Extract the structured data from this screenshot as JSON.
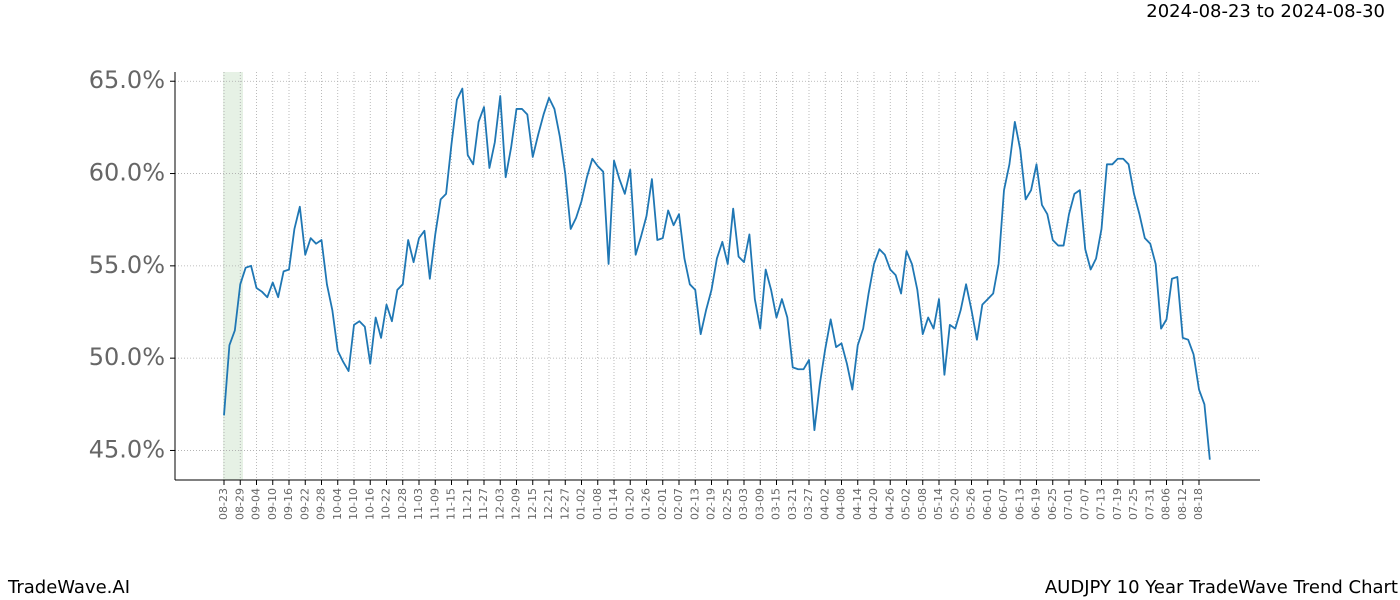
{
  "chart_data": {
    "type": "line",
    "title": "2024-08-23 to 2024-08-30",
    "footer_left": "TradeWave.AI",
    "footer_right": "AUDJPY 10 Year TradeWave Trend Chart",
    "grid": true,
    "ylim": [
      43.4,
      65.5
    ],
    "yticks": [
      {
        "value": 45,
        "label": "45.0%"
      },
      {
        "value": 50,
        "label": "50.0%"
      },
      {
        "value": 55,
        "label": "55.0%"
      },
      {
        "value": 60,
        "label": "60.0%"
      },
      {
        "value": 65,
        "label": "65.0%"
      }
    ],
    "categories": [
      "08-23",
      null,
      null,
      "08-29",
      null,
      null,
      "09-04",
      null,
      null,
      "09-10",
      null,
      null,
      "09-16",
      null,
      null,
      "09-22",
      null,
      null,
      "09-28",
      null,
      null,
      "10-04",
      null,
      null,
      "10-10",
      null,
      null,
      "10-16",
      null,
      null,
      "10-22",
      null,
      null,
      "10-28",
      null,
      null,
      "11-03",
      null,
      null,
      "11-09",
      null,
      null,
      "11-15",
      null,
      null,
      "11-21",
      null,
      null,
      "11-27",
      null,
      null,
      "12-03",
      null,
      null,
      "12-09",
      null,
      null,
      "12-15",
      null,
      null,
      "12-21",
      null,
      null,
      "12-27",
      null,
      null,
      "01-02",
      null,
      null,
      "01-08",
      null,
      null,
      "01-14",
      null,
      null,
      "01-20",
      null,
      null,
      "01-26",
      null,
      null,
      "02-01",
      null,
      null,
      "02-07",
      null,
      null,
      "02-13",
      null,
      null,
      "02-19",
      null,
      null,
      "02-25",
      null,
      null,
      "03-03",
      null,
      null,
      "03-09",
      null,
      null,
      "03-15",
      null,
      null,
      "03-21",
      null,
      null,
      "03-27",
      null,
      null,
      "04-02",
      null,
      null,
      "04-08",
      null,
      null,
      "04-14",
      null,
      null,
      "04-20",
      null,
      null,
      "04-26",
      null,
      null,
      "05-02",
      null,
      null,
      "05-08",
      null,
      null,
      "05-14",
      null,
      null,
      "05-20",
      null,
      null,
      "05-26",
      null,
      null,
      "06-01",
      null,
      null,
      "06-07",
      null,
      null,
      "06-13",
      null,
      null,
      "06-19",
      null,
      null,
      "06-25",
      null,
      null,
      "07-01",
      null,
      null,
      "07-07",
      null,
      null,
      "07-13",
      null,
      null,
      "07-19",
      null,
      null,
      "07-25",
      null,
      null,
      "07-31",
      null,
      null,
      "08-06",
      null,
      null,
      "08-12",
      null,
      null,
      "08-18",
      null,
      null
    ],
    "series": [
      {
        "color": "#1f77b4",
        "values": [
          46.9,
          50.7,
          51.5,
          54.0,
          54.9,
          55.0,
          53.8,
          53.6,
          53.3,
          54.1,
          53.3,
          54.7,
          54.8,
          57.0,
          58.2,
          55.6,
          56.5,
          56.2,
          56.4,
          54.0,
          52.6,
          50.4,
          49.8,
          49.3,
          51.8,
          52.0,
          51.7,
          49.7,
          52.2,
          51.1,
          52.9,
          52.0,
          53.7,
          54.0,
          56.4,
          55.2,
          56.5,
          56.9,
          54.3,
          56.7,
          58.6,
          58.9,
          61.6,
          64.0,
          64.6,
          61.0,
          60.5,
          62.8,
          63.6,
          60.3,
          61.7,
          64.2,
          59.8,
          61.4,
          63.5,
          63.5,
          63.2,
          60.9,
          62.1,
          63.2,
          64.1,
          63.5,
          62.0,
          60.0,
          57.0,
          57.6,
          58.5,
          59.8,
          60.8,
          60.4,
          60.1,
          55.1,
          60.7,
          59.7,
          58.9,
          60.2,
          55.6,
          56.6,
          57.7,
          59.7,
          56.4,
          56.5,
          58.0,
          57.2,
          57.8,
          55.4,
          54.0,
          53.7,
          51.3,
          52.6,
          53.7,
          55.4,
          56.3,
          55.1,
          58.1,
          55.5,
          55.2,
          56.7,
          53.2,
          51.6,
          54.8,
          53.7,
          52.2,
          53.2,
          52.2,
          49.5,
          49.4,
          49.4,
          49.9,
          46.1,
          48.6,
          50.5,
          52.1,
          50.6,
          50.8,
          49.7,
          48.3,
          50.7,
          51.6,
          53.5,
          55.1,
          55.9,
          55.6,
          54.8,
          54.5,
          53.5,
          55.8,
          55.1,
          53.7,
          51.3,
          52.2,
          51.6,
          53.2,
          49.1,
          51.8,
          51.6,
          52.6,
          54.0,
          52.6,
          51.0,
          52.9,
          53.2,
          53.5,
          55.1,
          59.1,
          60.5,
          62.8,
          61.3,
          58.6,
          59.1,
          60.5,
          58.3,
          57.8,
          56.4,
          56.1,
          56.1,
          57.8,
          58.9,
          59.1,
          55.9,
          54.8,
          55.4,
          57.0,
          60.5,
          60.5,
          60.8,
          60.8,
          60.5,
          58.9,
          57.8,
          56.5,
          56.2,
          55.1,
          51.6,
          52.1,
          54.3,
          54.4,
          51.1,
          51.0,
          50.2,
          48.3,
          47.5,
          44.5
        ]
      }
    ]
  }
}
